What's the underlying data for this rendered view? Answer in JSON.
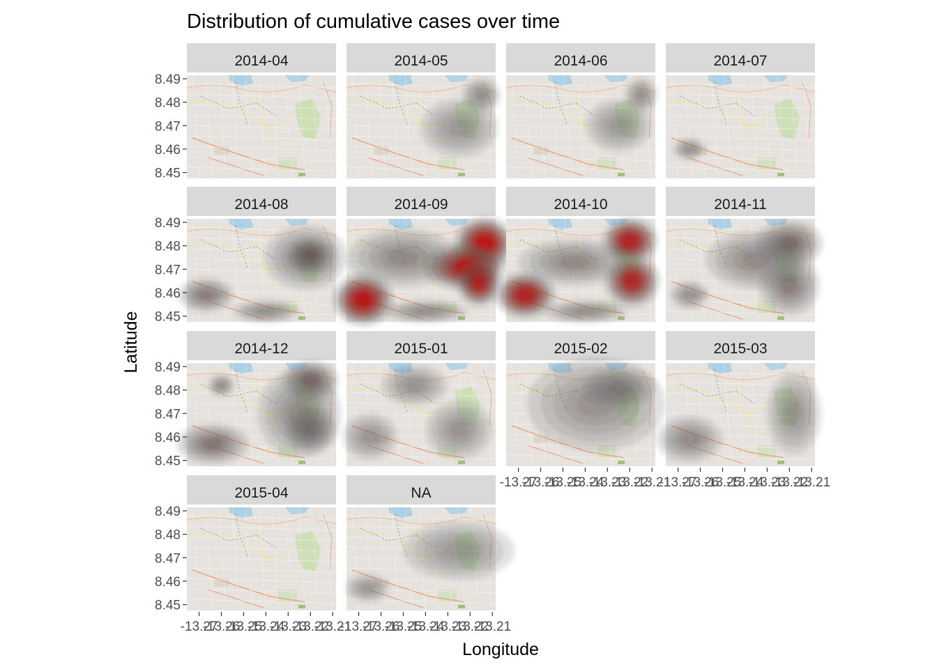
{
  "title": "Distribution of cumulative cases over time",
  "x_axis_title": "Longitude",
  "y_axis_title": "Latitude",
  "y_tick_labels": [
    "8.49",
    "8.48",
    "8.47",
    "8.46",
    "8.45"
  ],
  "x_tick_labels": [
    "-13.27",
    "-13.26",
    "-13.25",
    "-13.24",
    "-13.23",
    "-13.22",
    "-13.21"
  ],
  "colors": {
    "panel_background": "#ebebeb",
    "strip_background": "#d9d9d9",
    "density_high": "#cc0000",
    "density_low": "#6b6b6b",
    "water": "#a7cde6",
    "park": "#c8deb0"
  },
  "panels": [
    {
      "label": "2014-04",
      "blobs": []
    },
    {
      "label": "2014-05",
      "blobs": [
        {
          "lon": -13.215,
          "lat": 8.483,
          "rx": 0.007,
          "ry": 0.006,
          "level": 0.15
        },
        {
          "lon": -13.225,
          "lat": 8.469,
          "rx": 0.014,
          "ry": 0.01,
          "level": 0.08
        }
      ]
    },
    {
      "label": "2014-06",
      "blobs": [
        {
          "lon": -13.215,
          "lat": 8.483,
          "rx": 0.006,
          "ry": 0.006,
          "level": 0.12
        },
        {
          "lon": -13.225,
          "lat": 8.47,
          "rx": 0.012,
          "ry": 0.009,
          "level": 0.07
        }
      ]
    },
    {
      "label": "2014-07",
      "blobs": [
        {
          "lon": -13.265,
          "lat": 8.46,
          "rx": 0.006,
          "ry": 0.004,
          "level": 0.12
        }
      ]
    },
    {
      "label": "2014-08",
      "blobs": [
        {
          "lon": -13.222,
          "lat": 8.475,
          "rx": 0.015,
          "ry": 0.011,
          "level": 0.25
        },
        {
          "lon": -13.22,
          "lat": 8.476,
          "rx": 0.008,
          "ry": 0.006,
          "level": 0.45
        },
        {
          "lon": -13.267,
          "lat": 8.459,
          "rx": 0.01,
          "ry": 0.006,
          "level": 0.3
        },
        {
          "lon": -13.24,
          "lat": 8.452,
          "rx": 0.012,
          "ry": 0.004,
          "level": 0.15
        }
      ]
    },
    {
      "label": "2014-09",
      "blobs": [
        {
          "lon": -13.2135,
          "lat": 8.481,
          "rx": 0.011,
          "ry": 0.009,
          "level": 1.0
        },
        {
          "lon": -13.222,
          "lat": 8.471,
          "rx": 0.015,
          "ry": 0.008,
          "level": 0.9
        },
        {
          "lon": -13.216,
          "lat": 8.464,
          "rx": 0.008,
          "ry": 0.008,
          "level": 0.8
        },
        {
          "lon": -13.268,
          "lat": 8.457,
          "rx": 0.011,
          "ry": 0.009,
          "level": 0.95
        },
        {
          "lon": -13.25,
          "lat": 8.475,
          "rx": 0.02,
          "ry": 0.01,
          "level": 0.2
        },
        {
          "lon": -13.24,
          "lat": 8.452,
          "rx": 0.015,
          "ry": 0.004,
          "level": 0.15
        }
      ]
    },
    {
      "label": "2014-10",
      "blobs": [
        {
          "lon": -13.22,
          "lat": 8.482,
          "rx": 0.01,
          "ry": 0.008,
          "level": 0.85
        },
        {
          "lon": -13.219,
          "lat": 8.465,
          "rx": 0.01,
          "ry": 0.009,
          "level": 0.8
        },
        {
          "lon": -13.267,
          "lat": 8.459,
          "rx": 0.011,
          "ry": 0.008,
          "level": 0.85
        },
        {
          "lon": -13.245,
          "lat": 8.473,
          "rx": 0.02,
          "ry": 0.008,
          "level": 0.2
        },
        {
          "lon": -13.24,
          "lat": 8.452,
          "rx": 0.015,
          "ry": 0.004,
          "level": 0.15
        }
      ]
    },
    {
      "label": "2014-11",
      "blobs": [
        {
          "lon": -13.22,
          "lat": 8.481,
          "rx": 0.012,
          "ry": 0.008,
          "level": 0.45
        },
        {
          "lon": -13.22,
          "lat": 8.463,
          "rx": 0.011,
          "ry": 0.01,
          "level": 0.3
        },
        {
          "lon": -13.235,
          "lat": 8.474,
          "rx": 0.018,
          "ry": 0.01,
          "level": 0.2
        },
        {
          "lon": -13.265,
          "lat": 8.459,
          "rx": 0.007,
          "ry": 0.005,
          "level": 0.12
        }
      ]
    },
    {
      "label": "2014-12",
      "blobs": [
        {
          "lon": -13.22,
          "lat": 8.484,
          "rx": 0.01,
          "ry": 0.007,
          "level": 0.5
        },
        {
          "lon": -13.22,
          "lat": 8.463,
          "rx": 0.009,
          "ry": 0.008,
          "level": 0.35
        },
        {
          "lon": -13.264,
          "lat": 8.457,
          "rx": 0.013,
          "ry": 0.007,
          "level": 0.35
        },
        {
          "lon": -13.225,
          "lat": 8.47,
          "rx": 0.015,
          "ry": 0.015,
          "level": 0.18
        },
        {
          "lon": -13.26,
          "lat": 8.482,
          "rx": 0.005,
          "ry": 0.004,
          "level": 0.15
        }
      ]
    },
    {
      "label": "2015-01",
      "blobs": [
        {
          "lon": -13.245,
          "lat": 8.482,
          "rx": 0.012,
          "ry": 0.007,
          "level": 0.12
        },
        {
          "lon": -13.225,
          "lat": 8.463,
          "rx": 0.012,
          "ry": 0.01,
          "level": 0.12
        },
        {
          "lon": -13.265,
          "lat": 8.46,
          "rx": 0.01,
          "ry": 0.008,
          "level": 0.1
        }
      ]
    },
    {
      "label": "2015-02",
      "blobs": [
        {
          "lon": -13.225,
          "lat": 8.481,
          "rx": 0.013,
          "ry": 0.007,
          "level": 0.2
        },
        {
          "lon": -13.235,
          "lat": 8.474,
          "rx": 0.025,
          "ry": 0.016,
          "level": 0.12
        }
      ]
    },
    {
      "label": "2015-03",
      "blobs": [
        {
          "lon": -13.265,
          "lat": 8.459,
          "rx": 0.012,
          "ry": 0.008,
          "level": 0.18
        },
        {
          "lon": -13.218,
          "lat": 8.47,
          "rx": 0.01,
          "ry": 0.014,
          "level": 0.1
        }
      ]
    },
    {
      "label": "2015-04",
      "blobs": []
    },
    {
      "label": "NA",
      "blobs": [
        {
          "lon": -13.225,
          "lat": 8.473,
          "rx": 0.02,
          "ry": 0.01,
          "level": 0.08
        },
        {
          "lon": -13.266,
          "lat": 8.457,
          "rx": 0.008,
          "ry": 0.005,
          "level": 0.08
        }
      ]
    }
  ]
}
